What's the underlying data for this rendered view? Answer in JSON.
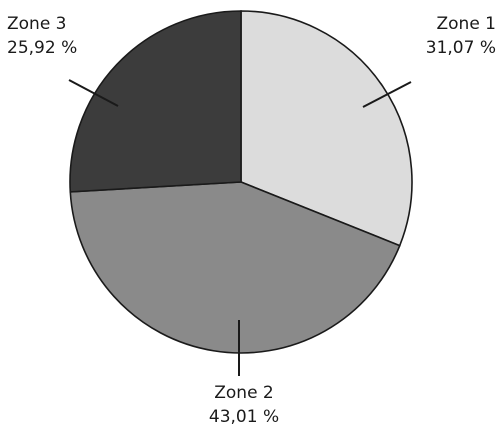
{
  "chart_data": {
    "type": "pie",
    "start_angle_deg": 0,
    "direction": "clockwise",
    "slices": [
      {
        "label": "Zone 1",
        "value": 31.07,
        "value_label": "31,07 %",
        "color": "#dcdcdc"
      },
      {
        "label": "Zone 2",
        "value": 43.01,
        "value_label": "43,01 %",
        "color": "#8a8a8a"
      },
      {
        "label": "Zone 3",
        "value": 25.92,
        "value_label": "25,92 %",
        "color": "#3c3c3c"
      }
    ]
  }
}
